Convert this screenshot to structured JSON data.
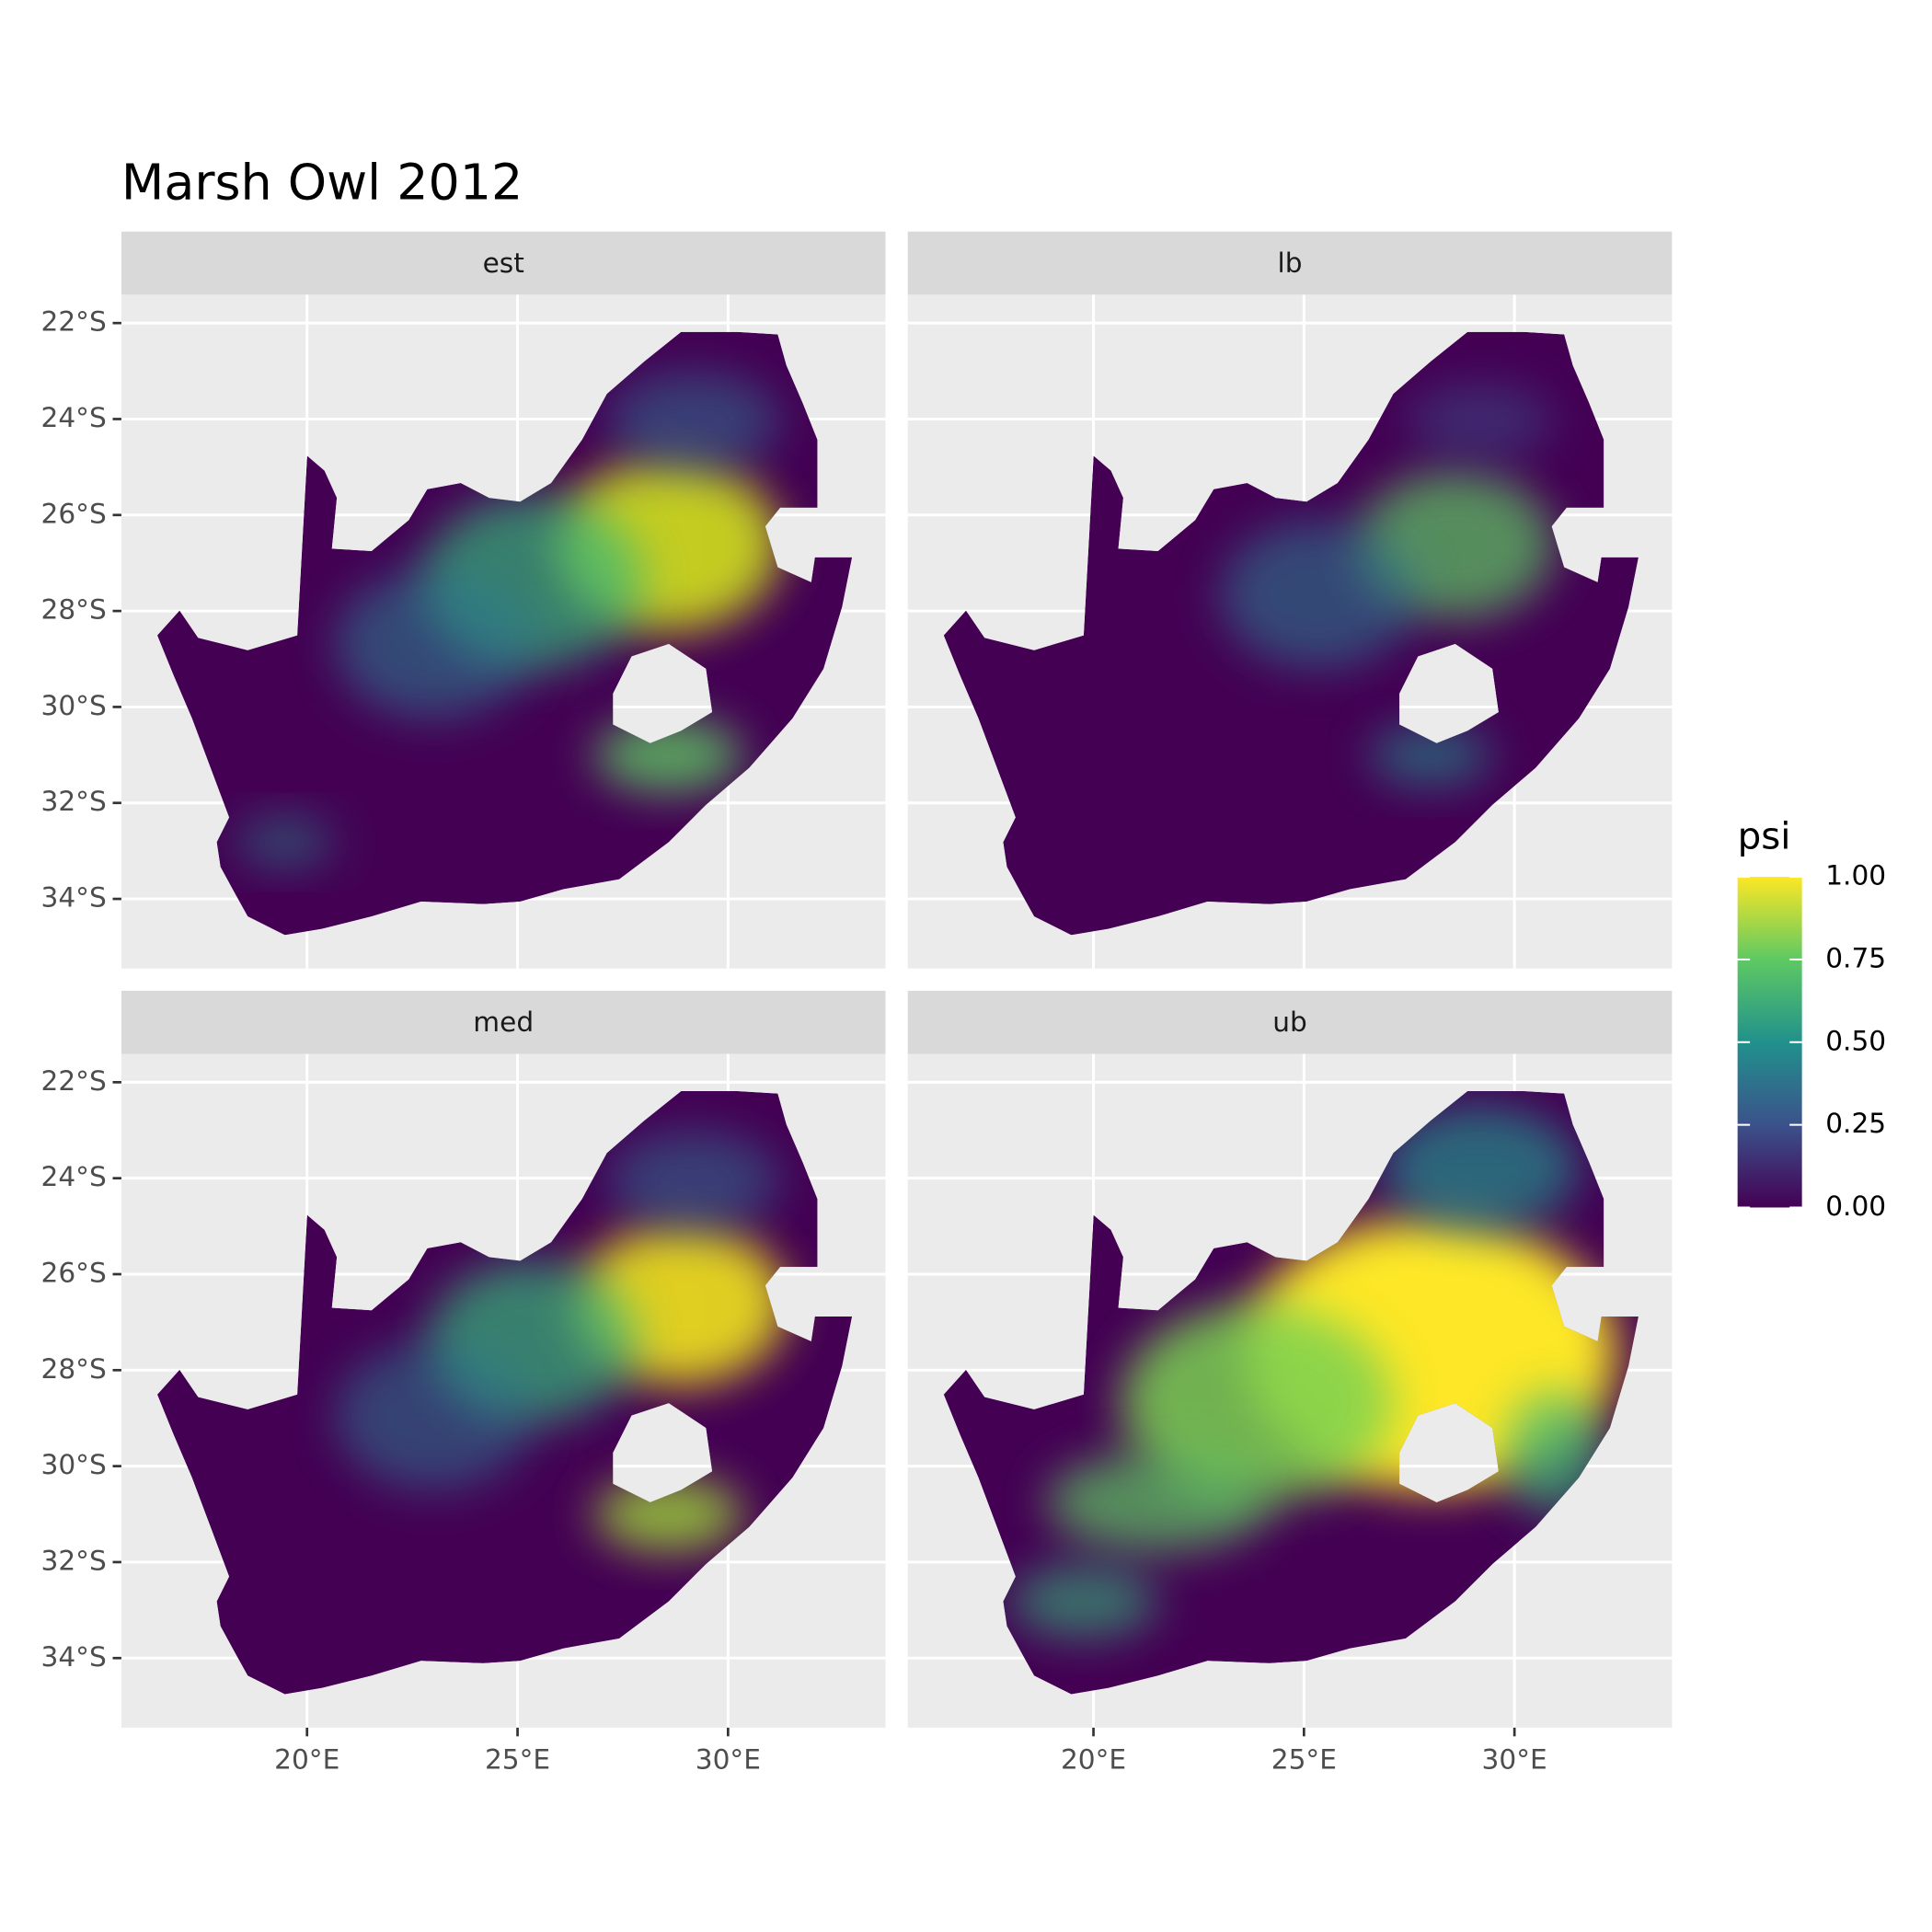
{
  "chart_data": {
    "type": "map",
    "title": "Marsh Owl 2012",
    "panels": [
      "est",
      "lb",
      "med",
      "ub"
    ],
    "xlim": [
      15.59,
      33.74
    ],
    "ylim": [
      -35.45,
      -21.41
    ],
    "xticks": [
      {
        "value": 20,
        "label": "20°E"
      },
      {
        "value": 25,
        "label": "25°E"
      },
      {
        "value": 30,
        "label": "30°E"
      }
    ],
    "yticks": [
      {
        "value": -22,
        "label": "22°S"
      },
      {
        "value": -24,
        "label": "24°S"
      },
      {
        "value": -26,
        "label": "26°S"
      },
      {
        "value": -28,
        "label": "28°S"
      },
      {
        "value": -30,
        "label": "30°S"
      },
      {
        "value": -32,
        "label": "32°S"
      },
      {
        "value": -34,
        "label": "34°S"
      }
    ],
    "grid": true,
    "legend": {
      "title": "psi",
      "lim": [
        0,
        1
      ],
      "ticks": [
        {
          "value": 0,
          "label": "0.00"
        },
        {
          "value": 0.25,
          "label": "0.25"
        },
        {
          "value": 0.5,
          "label": "0.50"
        },
        {
          "value": 0.75,
          "label": "0.75"
        },
        {
          "value": 1,
          "label": "1.00"
        }
      ],
      "colors": [
        "#440154",
        "#3b528b",
        "#21918c",
        "#5ec962",
        "#fde725"
      ]
    }
  }
}
